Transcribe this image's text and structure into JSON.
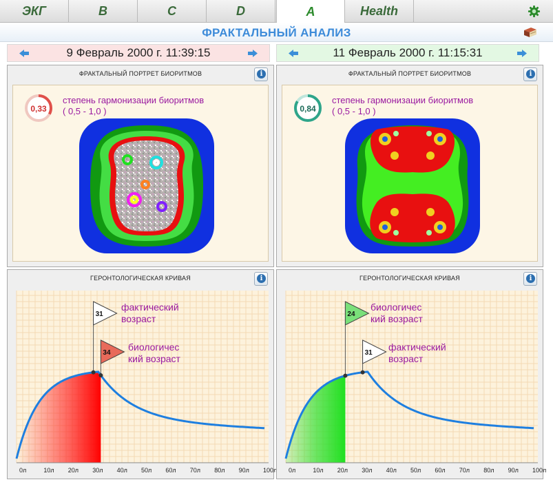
{
  "tabs": [
    "ЭКГ",
    "B",
    "C",
    "D",
    "A",
    "Health"
  ],
  "active_tab": "A",
  "icons": {
    "settings": "gear-icon",
    "help": "book-icon",
    "prev": "arrow-left-icon",
    "next": "arrow-right-icon",
    "info": "info-icon"
  },
  "page_title": "ФРАКТАЛЬНЫЙ АНАЛИЗ",
  "left": {
    "date": "9 Февраль 2000 г. 11:39:15",
    "fractal": {
      "header": "ФРАКТАЛЬНЫЙ ПОРТРЕТ БИОРИТМОВ",
      "harmony_value": "0,33",
      "harmony_fraction": 0.33,
      "harmony_label": "степень гармонизации биоритмов",
      "harmony_range": "( 0,5 - 1,0 )"
    },
    "curve": {
      "header": "ГЕРОНТОЛОГИЧЕСКАЯ КРИВАЯ",
      "factual_age": "31",
      "factual_label_1": "фактический",
      "factual_label_2": "возраст",
      "bio_age": "34",
      "bio_label_1": "биологичес",
      "bio_label_2": "кий возраст"
    }
  },
  "right": {
    "date": "11 Февраль 2000 г. 11:15:31",
    "fractal": {
      "header": "ФРАКТАЛЬНЫЙ ПОРТРЕТ БИОРИТМОВ",
      "harmony_value": "0,84",
      "harmony_fraction": 0.84,
      "harmony_label": "степень гармонизации биоритмов",
      "harmony_range": "( 0,5 - 1,0 )"
    },
    "curve": {
      "header": "ГЕРОНТОЛОГИЧЕСКАЯ КРИВАЯ",
      "bio_age": "24",
      "bio_label_1": "биологичес",
      "bio_label_2": "кий возраст",
      "factual_age": "31",
      "factual_label_1": "фактический",
      "factual_label_2": "возраст"
    }
  },
  "x_ticks": [
    "0л",
    "10л",
    "20л",
    "30л",
    "40л",
    "50л",
    "60л",
    "70л",
    "80л",
    "90л",
    "100л"
  ],
  "colors": {
    "title": "#3d8bd9",
    "label": "#9a1aa0",
    "curve": "#1e7fe0",
    "low_harmony": "#e0504a",
    "high_harmony": "#2fa58a"
  }
}
